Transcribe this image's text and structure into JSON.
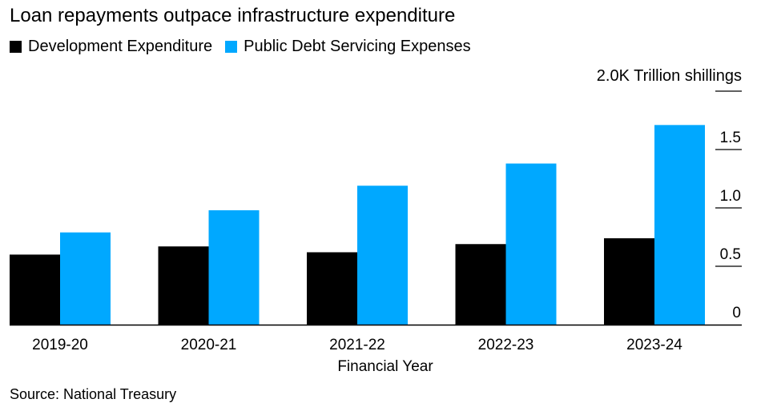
{
  "chart_data": {
    "type": "bar",
    "title": "Loan repayments outpace infrastructure expenditure",
    "categories": [
      "2019-20",
      "2020-21",
      "2021-22",
      "2022-23",
      "2023-24"
    ],
    "series": [
      {
        "name": "Development Expenditure",
        "color": "#000000",
        "values": [
          0.6,
          0.67,
          0.62,
          0.69,
          0.74
        ]
      },
      {
        "name": "Public Debt Servicing Expenses",
        "color": "#00a8ff",
        "values": [
          0.79,
          0.98,
          1.19,
          1.38,
          1.71
        ]
      }
    ],
    "xlabel": "Financial Year",
    "ylabel": "2.0K Trillion shillings",
    "ylim": [
      0,
      2.0
    ],
    "yticks": [
      {
        "value": 0,
        "label": "0"
      },
      {
        "value": 0.5,
        "label": "0.5"
      },
      {
        "value": 1.0,
        "label": "1.0"
      },
      {
        "value": 1.5,
        "label": "1.5"
      }
    ],
    "legend": "top-left",
    "grid": false
  },
  "source": "Source: National Treasury"
}
